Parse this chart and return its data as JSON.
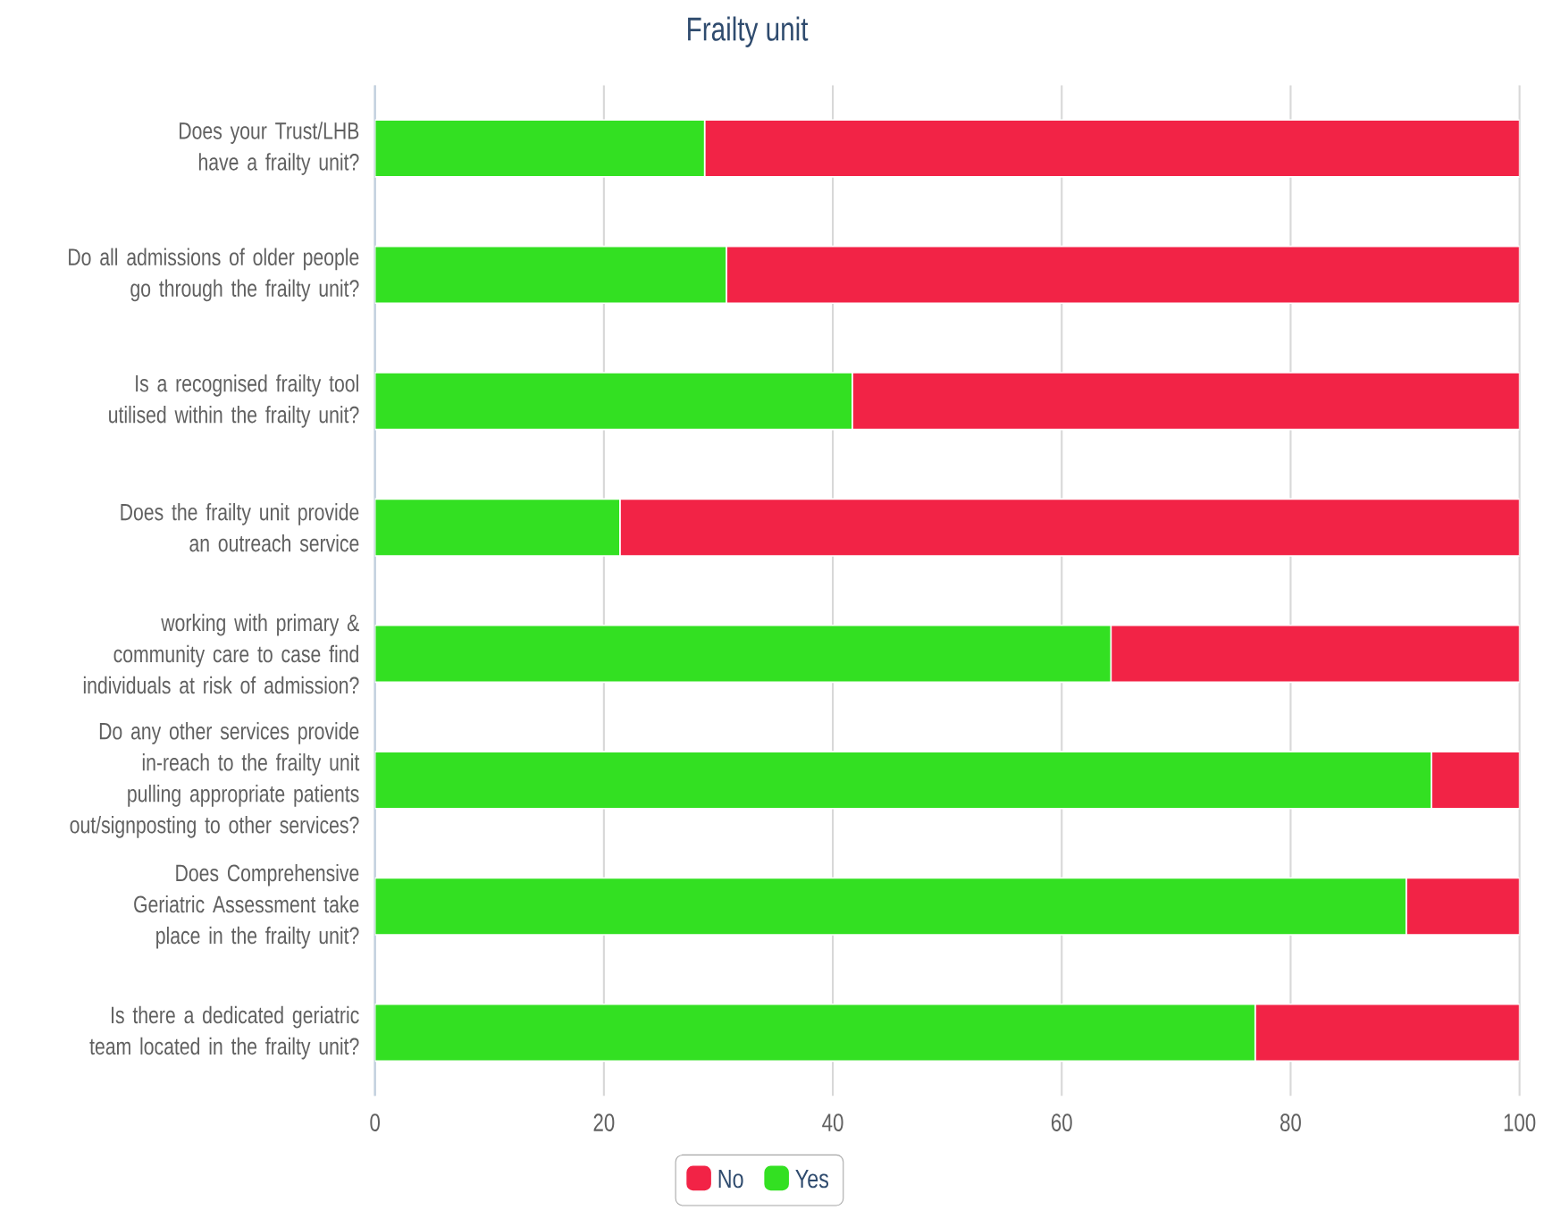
{
  "chart_data": {
    "type": "bar",
    "orientation": "horizontal",
    "stacked": true,
    "title": "Frailty unit",
    "categories": [
      "Does your Trust/LHB have a frailty unit?",
      "Do all admissions of older people go through the frailty unit?",
      "Is a recognised frailty tool utilised within the frailty unit?",
      "Does the frailty unit provide an outreach service",
      "working with primary & community care to case find individuals at risk of admission?",
      "Do any other services provide in-reach to the frailty unit pulling appropriate patients out/signposting to other services?",
      "Does Comprehensive Geriatric Assessment take place in the frailty unit?",
      "Is there a dedicated geriatric team located in the frailty unit?"
    ],
    "series": [
      {
        "name": "Yes",
        "color": "#33e022",
        "values": [
          28.8,
          30.7,
          41.7,
          21.4,
          64.3,
          92.3,
          90.1,
          76.9
        ]
      },
      {
        "name": "No",
        "color": "#f22346",
        "values": [
          71.2,
          69.3,
          58.3,
          78.6,
          35.7,
          7.7,
          9.9,
          23.1
        ]
      }
    ],
    "xlim": [
      0,
      100
    ],
    "xticks": [
      0,
      20,
      40,
      60,
      80,
      100
    ],
    "grid": "x",
    "legend": "bottom"
  }
}
